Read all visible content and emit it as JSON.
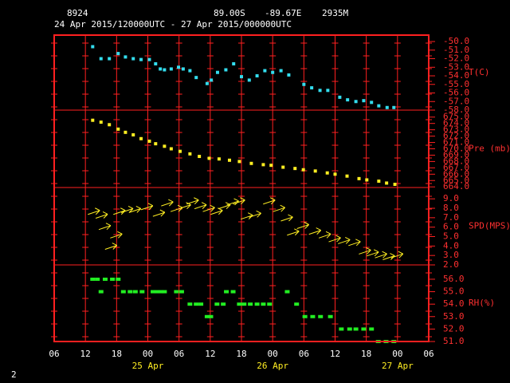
{
  "header": {
    "station": "8924",
    "latitude": "89.00S",
    "longitude": "-89.67E",
    "elevation": "2935M",
    "period": "24 Apr 2015/120000UTC - 27 Apr 2015/000000UTC"
  },
  "page_number": "2",
  "chart_data": [
    {
      "type": "scatter",
      "marker": "square",
      "ylabel": "T(C)",
      "color": "#33ddee",
      "xlim": [
        0,
        72
      ],
      "ylim": [
        -58,
        -49.25
      ],
      "yticks": [
        {
          "value": -50,
          "label": "-50.0"
        },
        {
          "value": -51,
          "label": "-51.0"
        },
        {
          "value": -52,
          "label": "-52.0"
        },
        {
          "value": -53,
          "label": "-53.0"
        },
        {
          "value": -54,
          "label": "-54.0"
        },
        {
          "value": -55,
          "label": "-55.0"
        },
        {
          "value": -56,
          "label": "-56.0"
        },
        {
          "value": -57,
          "label": "-57.0"
        },
        {
          "value": -58,
          "label": "-58.0"
        }
      ],
      "x": [
        7.4,
        9.0,
        10.6,
        12.3,
        13.7,
        15.2,
        16.7,
        18.3,
        19.5,
        20.4,
        21.2,
        22.5,
        23.9,
        24.8,
        26.1,
        27.3,
        29.4,
        30.2,
        31.4,
        33.0,
        34.5,
        36.0,
        37.5,
        39.0,
        40.5,
        42.0,
        43.6,
        45.1,
        48.0,
        49.5,
        51.1,
        52.6,
        54.9,
        56.4,
        58.0,
        59.5,
        61.0,
        62.4,
        64.0,
        65.3
      ],
      "values": [
        -50.6,
        -52.0,
        -52.0,
        -51.4,
        -51.8,
        -52.0,
        -52.1,
        -52.1,
        -52.6,
        -53.2,
        -53.3,
        -53.2,
        -53.0,
        -53.2,
        -53.4,
        -54.2,
        -54.9,
        -54.5,
        -53.6,
        -53.3,
        -52.6,
        -54.1,
        -54.5,
        -54.0,
        -53.4,
        -53.6,
        -53.4,
        -53.9,
        -55.0,
        -55.4,
        -55.7,
        -55.7,
        -56.5,
        -56.8,
        -57.0,
        -56.9,
        -57.1,
        -57.5,
        -57.7,
        -57.7
      ]
    },
    {
      "type": "scatter",
      "marker": "square",
      "ylabel": "Pre (mb)",
      "color": "#ffee22",
      "xlim": [
        0,
        72
      ],
      "ylim": [
        663.9,
        676.1
      ],
      "yticks": [
        {
          "value": 675,
          "label": "675.0"
        },
        {
          "value": 674,
          "label": "674.0"
        },
        {
          "value": 673,
          "label": "673.0"
        },
        {
          "value": 672,
          "label": "672.0"
        },
        {
          "value": 671,
          "label": "671.0"
        },
        {
          "value": 670,
          "label": "670.0"
        },
        {
          "value": 669,
          "label": "669.0"
        },
        {
          "value": 668,
          "label": "668.0"
        },
        {
          "value": 667,
          "label": "667.0"
        },
        {
          "value": 666,
          "label": "666.0"
        },
        {
          "value": 665,
          "label": "665.0"
        },
        {
          "value": 664,
          "label": "664.0"
        }
      ],
      "x": [
        7.4,
        9.0,
        10.6,
        12.3,
        13.7,
        15.2,
        16.7,
        18.3,
        19.5,
        21.2,
        22.5,
        24.2,
        26.1,
        27.9,
        29.8,
        31.7,
        33.7,
        35.6,
        37.9,
        40.2,
        41.7,
        44.0,
        46.3,
        47.9,
        50.2,
        52.5,
        54.0,
        56.3,
        58.6,
        60.1,
        62.4,
        63.9,
        65.5
      ],
      "values": [
        674.5,
        674.2,
        673.8,
        673.1,
        672.6,
        672.2,
        671.6,
        671.2,
        670.8,
        670.4,
        670.0,
        669.6,
        669.2,
        668.8,
        668.5,
        668.4,
        668.2,
        668.0,
        667.7,
        667.5,
        667.4,
        667.1,
        666.9,
        666.7,
        666.5,
        666.2,
        666.0,
        665.7,
        665.3,
        665.1,
        664.9,
        664.6,
        664.4
      ]
    },
    {
      "type": "scatter",
      "marker": "arrow",
      "ylabel": "SPD(MPS)",
      "color": "#ffee22",
      "xlim": [
        0,
        72
      ],
      "ylim": [
        2,
        10.2
      ],
      "yticks": [
        {
          "value": 9,
          "label": "9.0"
        },
        {
          "value": 8,
          "label": "8.0"
        },
        {
          "value": 7,
          "label": "7.0"
        },
        {
          "value": 6,
          "label": "6.0"
        },
        {
          "value": 5,
          "label": "5.0"
        },
        {
          "value": 4,
          "label": "4.0"
        },
        {
          "value": 3,
          "label": "3.0"
        },
        {
          "value": 2,
          "label": "2.0"
        }
      ],
      "x": [
        7.7,
        9.2,
        9.8,
        11.0,
        12.0,
        12.6,
        14.1,
        15.6,
        17.9,
        20.2,
        21.8,
        23.6,
        25.2,
        26.7,
        28.2,
        29.8,
        31.3,
        32.8,
        34.4,
        35.6,
        37.1,
        38.7,
        41.4,
        43.3,
        44.8,
        46.0,
        47.9,
        50.2,
        52.1,
        54.0,
        55.8,
        57.8,
        59.8,
        61.3,
        62.9,
        64.4,
        66.0
      ],
      "values": [
        7.6,
        7.2,
        6.0,
        3.9,
        5.1,
        7.6,
        7.8,
        7.8,
        8.1,
        7.4,
        8.5,
        7.9,
        8.2,
        8.7,
        8.2,
        7.9,
        7.6,
        8.2,
        8.6,
        8.7,
        7.1,
        7.3,
        8.7,
        7.9,
        6.9,
        5.4,
        6.1,
        5.5,
        5.1,
        4.7,
        4.5,
        4.3,
        3.4,
        3.2,
        3.0,
        2.8,
        3.0
      ]
    },
    {
      "type": "scatter",
      "marker": "dash",
      "ylabel": "RH(%)",
      "color": "#22ee22",
      "xlim": [
        0,
        72
      ],
      "ylim": [
        51,
        57.15
      ],
      "yticks": [
        {
          "value": 56,
          "label": "56.0"
        },
        {
          "value": 55,
          "label": "55.0"
        },
        {
          "value": 54,
          "label": "54.0"
        },
        {
          "value": 53,
          "label": "53.0"
        },
        {
          "value": 52,
          "label": "52.0"
        },
        {
          "value": 51,
          "label": "51.0"
        }
      ],
      "xticks": [
        {
          "value": 0,
          "label": "06"
        },
        {
          "value": 6,
          "label": "12"
        },
        {
          "value": 12,
          "label": "18"
        },
        {
          "value": 18,
          "label": "00"
        },
        {
          "value": 24,
          "label": "06"
        },
        {
          "value": 30,
          "label": "12"
        },
        {
          "value": 36,
          "label": "18"
        },
        {
          "value": 42,
          "label": "00"
        },
        {
          "value": 48,
          "label": "06"
        },
        {
          "value": 54,
          "label": "12"
        },
        {
          "value": 60,
          "label": "18"
        },
        {
          "value": 66,
          "label": "00"
        },
        {
          "value": 72,
          "label": "06"
        }
      ],
      "date_ticks": [
        {
          "value": 18,
          "label": "25 Apr"
        },
        {
          "value": 42,
          "label": "26 Apr"
        },
        {
          "value": 66,
          "label": "27 Apr"
        }
      ],
      "x": [
        7.4,
        8.3,
        9.0,
        9.8,
        11.2,
        12.3,
        13.3,
        14.6,
        15.6,
        16.9,
        19.0,
        19.8,
        20.6,
        21.2,
        23.5,
        24.5,
        26.1,
        27.3,
        28.2,
        29.4,
        30.1,
        31.3,
        32.5,
        33.1,
        34.4,
        35.6,
        36.5,
        37.7,
        39.0,
        40.2,
        41.4,
        44.8,
        46.6,
        48.2,
        49.7,
        51.2,
        53.1,
        55.2,
        56.8,
        58.0,
        59.5,
        61.0,
        62.3,
        63.8,
        65.3
      ],
      "values": [
        56,
        56,
        55,
        56,
        56,
        56,
        55,
        55,
        55,
        55,
        55,
        55,
        55,
        55,
        55,
        55,
        54,
        54,
        54,
        53,
        53,
        54,
        54,
        55,
        55,
        54,
        54,
        54,
        54,
        54,
        54,
        55,
        54,
        53,
        53,
        53,
        53,
        52,
        52,
        52,
        52,
        52,
        51,
        51,
        51
      ]
    }
  ]
}
